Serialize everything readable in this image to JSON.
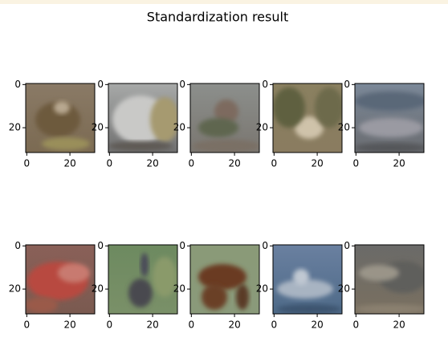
{
  "chart_data": {
    "type": "image-grid",
    "title": "Standardization result",
    "xlim": [
      -0.5,
      31.5
    ],
    "ylim": [
      31.5,
      -0.5
    ],
    "xticks": [
      0,
      20
    ],
    "yticks": [
      0,
      20
    ]
  }
}
